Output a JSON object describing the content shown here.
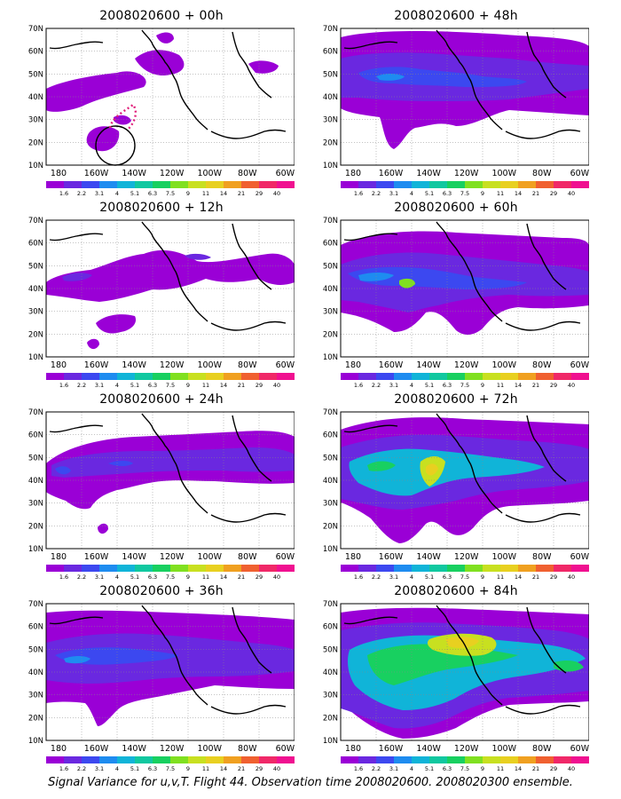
{
  "caption": "Signal Variance for u,v,T. Flight 44. Observation time 2008020600. 2008020300 ensemble.",
  "lat_labels": [
    "70N",
    "60N",
    "50N",
    "40N",
    "30N",
    "20N",
    "10N"
  ],
  "lon_labels": [
    "180",
    "160W",
    "140W",
    "120W",
    "100W",
    "80W",
    "60W"
  ],
  "colorbar": {
    "labels": [
      "1.6",
      "2.2",
      "3.1",
      "4",
      "5.1",
      "6.3",
      "7.5",
      "9",
      "11",
      "14",
      "21",
      "29",
      "40"
    ],
    "colors": [
      "#9a00d6",
      "#6a28e0",
      "#3c48f0",
      "#1e8cf0",
      "#10b4d8",
      "#10c8a0",
      "#18d060",
      "#80e020",
      "#c8e020",
      "#e8d020",
      "#f0a020",
      "#f06030",
      "#f02868"
    ]
  },
  "panels": [
    {
      "title": "2008020600 + 00h"
    },
    {
      "title": "2008020600 + 48h"
    },
    {
      "title": "2008020600 + 12h"
    },
    {
      "title": "2008020600 + 60h"
    },
    {
      "title": "2008020600 + 24h"
    },
    {
      "title": "2008020600 + 72h"
    },
    {
      "title": "2008020600 + 36h"
    },
    {
      "title": "2008020600 + 84h"
    }
  ]
}
